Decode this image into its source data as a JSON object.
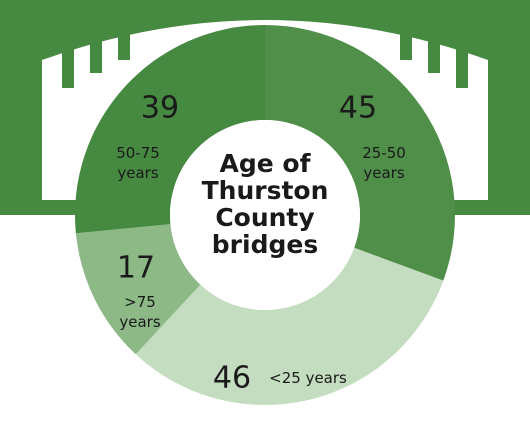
{
  "chart_data": {
    "type": "pie",
    "donut": true,
    "title": "Age of Thurston County bridges",
    "categories": [
      "25-50 years",
      "<25 years",
      ">75 years",
      "50-75 years"
    ],
    "values": [
      45,
      46,
      17,
      39
    ],
    "colors": [
      "#4f8f49",
      "#c4dcbf",
      "#8db987",
      "#468a41"
    ]
  }
}
